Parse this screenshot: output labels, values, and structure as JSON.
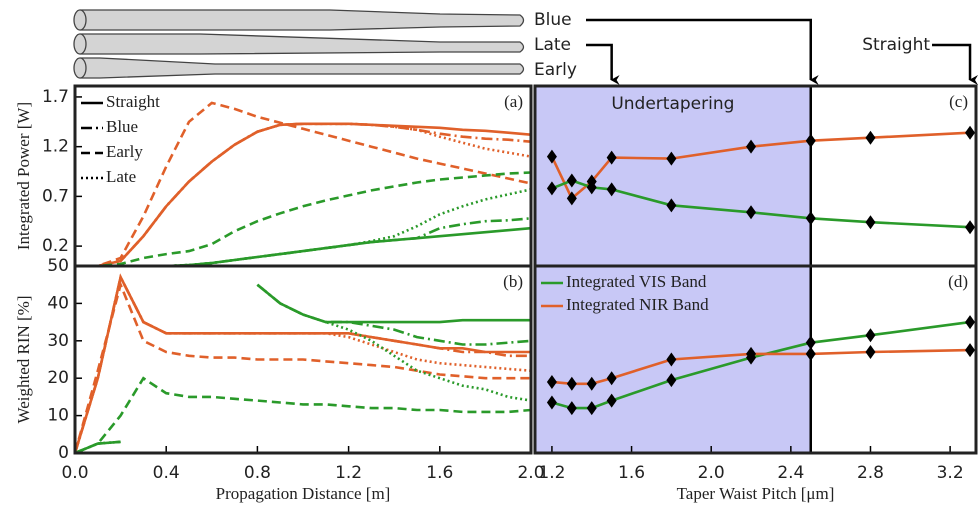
{
  "chart_data": [
    {
      "type": "line",
      "label": "(a)",
      "ylabel": "Integrated Power [W]",
      "xlim": [
        0,
        2.0
      ],
      "ylim": [
        0,
        1.81
      ],
      "yticks": [
        0.2,
        0.7,
        1.2,
        1.7
      ],
      "x": [
        0,
        0.1,
        0.2,
        0.3,
        0.4,
        0.5,
        0.6,
        0.7,
        0.8,
        0.9,
        1.0,
        1.1,
        1.2,
        1.3,
        1.4,
        1.5,
        1.6,
        1.7,
        1.8,
        1.9,
        2.0
      ],
      "legend": "upper left",
      "series": [
        {
          "name": "Straight",
          "color": "#e0602a",
          "dash": "solid",
          "values": [
            0,
            0,
            0.05,
            0.3,
            0.6,
            0.85,
            1.05,
            1.22,
            1.35,
            1.42,
            1.43,
            1.43,
            1.43,
            1.42,
            1.41,
            1.4,
            1.39,
            1.37,
            1.36,
            1.34,
            1.32
          ]
        },
        {
          "name": "Blue",
          "color": "#e0602a",
          "dash": "dashdot",
          "values": [
            0,
            0,
            0.05,
            0.3,
            0.6,
            0.85,
            1.05,
            1.22,
            1.35,
            1.42,
            1.43,
            1.43,
            1.43,
            1.42,
            1.4,
            1.37,
            1.33,
            1.3,
            1.28,
            1.27,
            1.25
          ]
        },
        {
          "name": "Early",
          "color": "#e0602a",
          "dash": "dashed",
          "values": [
            0,
            0,
            0.08,
            0.5,
            1.0,
            1.45,
            1.64,
            1.58,
            1.5,
            1.44,
            1.38,
            1.32,
            1.26,
            1.2,
            1.14,
            1.08,
            1.03,
            0.98,
            0.93,
            0.88,
            0.83
          ]
        },
        {
          "name": "Late",
          "color": "#e0602a",
          "dash": "dotted",
          "values": [
            0,
            0,
            0.05,
            0.3,
            0.6,
            0.85,
            1.05,
            1.22,
            1.35,
            1.42,
            1.43,
            1.43,
            1.43,
            1.42,
            1.4,
            1.37,
            1.3,
            1.24,
            1.18,
            1.14,
            1.1
          ]
        },
        {
          "name": "Straight",
          "color": "#2a9a2a",
          "dash": "solid",
          "values": [
            0,
            0,
            0,
            0,
            0,
            0.01,
            0.03,
            0.06,
            0.09,
            0.12,
            0.15,
            0.18,
            0.21,
            0.24,
            0.26,
            0.28,
            0.3,
            0.32,
            0.34,
            0.36,
            0.38
          ]
        },
        {
          "name": "Blue",
          "color": "#2a9a2a",
          "dash": "dashdot",
          "values": [
            0,
            0,
            0,
            0,
            0,
            0.01,
            0.03,
            0.06,
            0.09,
            0.12,
            0.15,
            0.18,
            0.21,
            0.24,
            0.26,
            0.28,
            0.38,
            0.42,
            0.45,
            0.46,
            0.48
          ]
        },
        {
          "name": "Early",
          "color": "#2a9a2a",
          "dash": "dashed",
          "values": [
            0,
            0,
            0.02,
            0.08,
            0.12,
            0.15,
            0.22,
            0.35,
            0.45,
            0.53,
            0.6,
            0.66,
            0.71,
            0.76,
            0.8,
            0.84,
            0.87,
            0.89,
            0.91,
            0.93,
            0.94
          ]
        },
        {
          "name": "Late",
          "color": "#2a9a2a",
          "dash": "dotted",
          "values": [
            0,
            0,
            0,
            0,
            0,
            0.01,
            0.03,
            0.06,
            0.09,
            0.12,
            0.15,
            0.18,
            0.21,
            0.25,
            0.3,
            0.4,
            0.52,
            0.6,
            0.67,
            0.72,
            0.77
          ]
        }
      ]
    },
    {
      "type": "line",
      "label": "(b)",
      "ylabel": "Weighted RIN [%]",
      "xlabel": "Propagation Distance [m]",
      "xlim": [
        0,
        2.0
      ],
      "ylim": [
        0,
        50
      ],
      "yticks": [
        0,
        10,
        20,
        30,
        40,
        50
      ],
      "xticks": [
        {
          "value": 0,
          "label": "0.0"
        },
        0.4,
        0.8,
        1.2,
        1.6,
        {
          "value": 2,
          "label": "2.0"
        }
      ],
      "x": [
        0,
        0.1,
        0.2,
        0.3,
        0.4,
        0.5,
        0.6,
        0.7,
        0.8,
        0.9,
        1.0,
        1.1,
        1.2,
        1.3,
        1.4,
        1.5,
        1.6,
        1.7,
        1.8,
        1.9,
        2.0
      ],
      "series": [
        {
          "color": "#e0602a",
          "dash": "solid",
          "values": [
            0,
            20,
            47,
            35,
            32,
            32,
            32,
            32,
            32,
            32,
            32,
            32,
            32,
            31,
            30,
            29,
            28,
            28,
            27,
            27,
            27
          ]
        },
        {
          "color": "#e0602a",
          "dash": "dashdot",
          "values": [
            0,
            20,
            47,
            35,
            32,
            32,
            32,
            32,
            32,
            32,
            32,
            32,
            32,
            31,
            30,
            29,
            28,
            27,
            27,
            26,
            26
          ]
        },
        {
          "color": "#e0602a",
          "dash": "dashed",
          "values": [
            0,
            22,
            45,
            30,
            27,
            26,
            25.5,
            25.5,
            25,
            25,
            25,
            24.5,
            24,
            23.5,
            23,
            22,
            21,
            20.5,
            20,
            20,
            20
          ]
        },
        {
          "color": "#e0602a",
          "dash": "dotted",
          "values": [
            0,
            20,
            47,
            35,
            32,
            32,
            32,
            32,
            32,
            32,
            32,
            32,
            31,
            29,
            27,
            25,
            24,
            23.5,
            23,
            22.5,
            22
          ]
        },
        {
          "color": "#2a9a2a",
          "dash": "solid",
          "values": [
            0,
            2.5,
            3,
            null,
            null,
            null,
            null,
            null,
            45,
            40,
            37,
            35,
            35,
            35,
            35,
            35,
            35,
            35.5,
            35.5,
            35.5,
            35.5
          ]
        },
        {
          "color": "#2a9a2a",
          "dash": "dashdot",
          "values": [
            0,
            2.5,
            3,
            null,
            null,
            null,
            null,
            null,
            45,
            40,
            37,
            35,
            35,
            34,
            33,
            31,
            30,
            29,
            29,
            29.5,
            30
          ]
        },
        {
          "color": "#2a9a2a",
          "dash": "dashed",
          "values": [
            0,
            2.5,
            10,
            20,
            16,
            15,
            15,
            14.5,
            14,
            13.5,
            13,
            13,
            12.5,
            12,
            12,
            11.5,
            11.5,
            11,
            11,
            11,
            11.5
          ]
        },
        {
          "color": "#2a9a2a",
          "dash": "dotted",
          "values": [
            0,
            2.5,
            3,
            null,
            null,
            null,
            null,
            null,
            45,
            40,
            37,
            35,
            33,
            30,
            26,
            22,
            20,
            18,
            17,
            15,
            14
          ]
        }
      ]
    },
    {
      "type": "line",
      "label": "(c)",
      "annotation": "Undertapering",
      "shade_xmax": 2.5,
      "shade_color": "#c8c8f6",
      "xlim": [
        1.115,
        3.33
      ],
      "ylim": [
        0,
        1.81
      ],
      "marker": "diamond",
      "x": [
        1.2,
        1.3,
        1.4,
        1.5,
        1.8,
        2.2,
        2.5,
        2.8,
        3.3
      ],
      "markers": [
        {
          "label": "Blue",
          "x": 2.5
        },
        {
          "label": "Late",
          "x": 1.5
        },
        {
          "label": "Early",
          "x": null
        },
        {
          "label": "Straight",
          "x": 3.3
        }
      ],
      "series": [
        {
          "color": "#e0602a",
          "dash": "solid",
          "values": [
            1.1,
            0.68,
            0.85,
            1.09,
            1.08,
            1.2,
            1.26,
            1.29,
            1.34
          ]
        },
        {
          "color": "#2a9a2a",
          "dash": "solid",
          "values": [
            0.78,
            0.86,
            0.79,
            0.77,
            0.61,
            0.54,
            0.48,
            0.44,
            0.39
          ]
        }
      ]
    },
    {
      "type": "line",
      "label": "(d)",
      "xlabel": "Taper Waist Pitch [μm]",
      "shade_xmax": 2.5,
      "shade_color": "#c8c8f6",
      "xlim": [
        1.115,
        3.33
      ],
      "ylim": [
        0,
        50
      ],
      "marker": "diamond",
      "legend": "upper left",
      "xticks": [
        1.2,
        1.6,
        {
          "value": 2,
          "label": "2.0"
        },
        2.4,
        2.8,
        3.2
      ],
      "x": [
        1.2,
        1.3,
        1.4,
        1.5,
        1.8,
        2.2,
        2.5,
        2.8,
        3.3
      ],
      "series": [
        {
          "name": "Integrated VIS Band",
          "color": "#2a9a2a",
          "dash": "solid",
          "values": [
            13.5,
            12,
            12,
            14,
            19.5,
            25.5,
            29.5,
            31.5,
            35
          ]
        },
        {
          "name": "Integrated NIR Band",
          "color": "#e0602a",
          "dash": "solid",
          "values": [
            19,
            18.5,
            18.5,
            20,
            25,
            26.5,
            26.5,
            27,
            27.5
          ]
        }
      ]
    }
  ]
}
